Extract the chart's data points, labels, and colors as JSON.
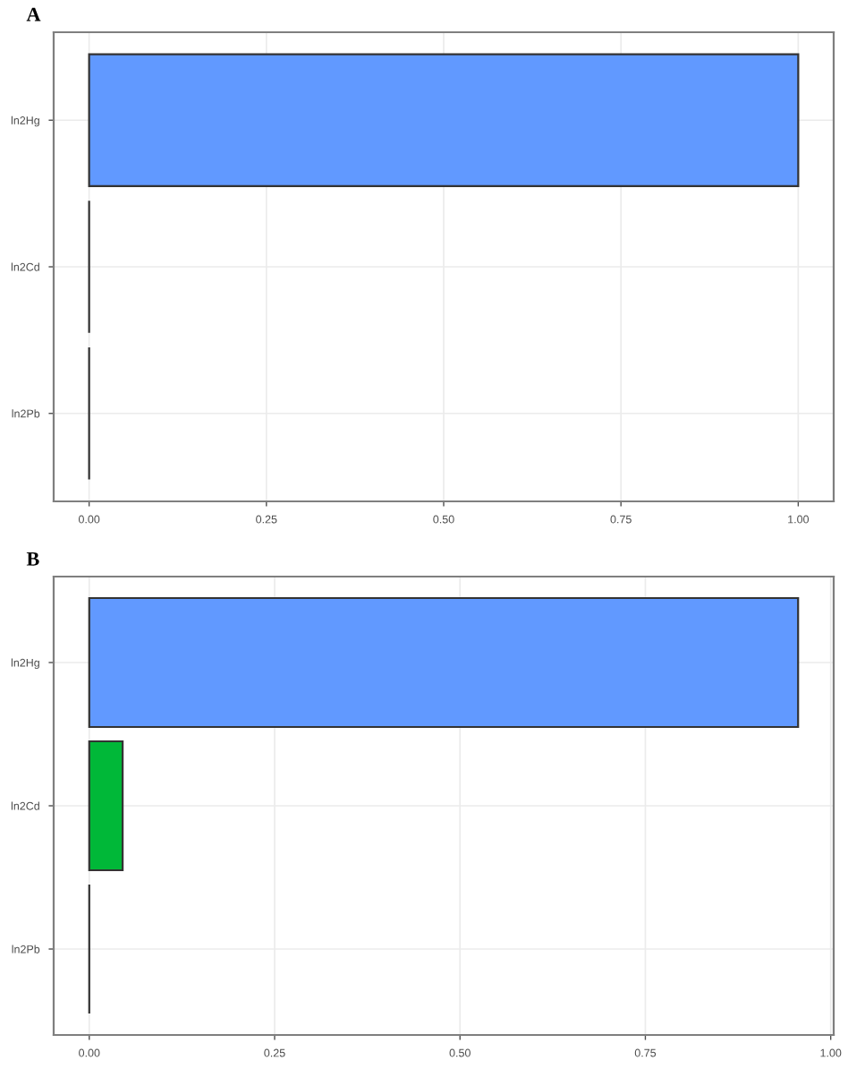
{
  "chart_data": [
    {
      "type": "bar",
      "title": "A",
      "orientation": "horizontal",
      "categories": [
        "ln2Hg",
        "ln2Cd",
        "ln2Pb"
      ],
      "values": [
        1.0,
        0,
        0
      ],
      "colors": [
        "#6199ff",
        "#333333",
        "#333333"
      ],
      "xlim": [
        -0.05,
        1.05
      ],
      "xticks": [
        {
          "value": 0,
          "label": "0.00"
        },
        {
          "value": 0.25,
          "label": "0.25"
        },
        {
          "value": 0.5,
          "label": "0.50"
        },
        {
          "value": 0.75,
          "label": "0.75"
        },
        {
          "value": 1.0,
          "label": "1.00"
        }
      ],
      "grid": true
    },
    {
      "type": "bar",
      "title": "B",
      "orientation": "horizontal",
      "categories": [
        "ln2Hg",
        "ln2Cd",
        "ln2Pb"
      ],
      "values": [
        0.956,
        0.045,
        0
      ],
      "colors": [
        "#6199ff",
        "#00b838",
        "#333333"
      ],
      "xlim": [
        -0.048,
        1.004
      ],
      "xticks": [
        {
          "value": 0,
          "label": "0.00"
        },
        {
          "value": 0.25,
          "label": "0.25"
        },
        {
          "value": 0.5,
          "label": "0.50"
        },
        {
          "value": 0.75,
          "label": "0.75"
        },
        {
          "value": 1.0,
          "label": "1.00"
        }
      ],
      "grid": true
    }
  ]
}
